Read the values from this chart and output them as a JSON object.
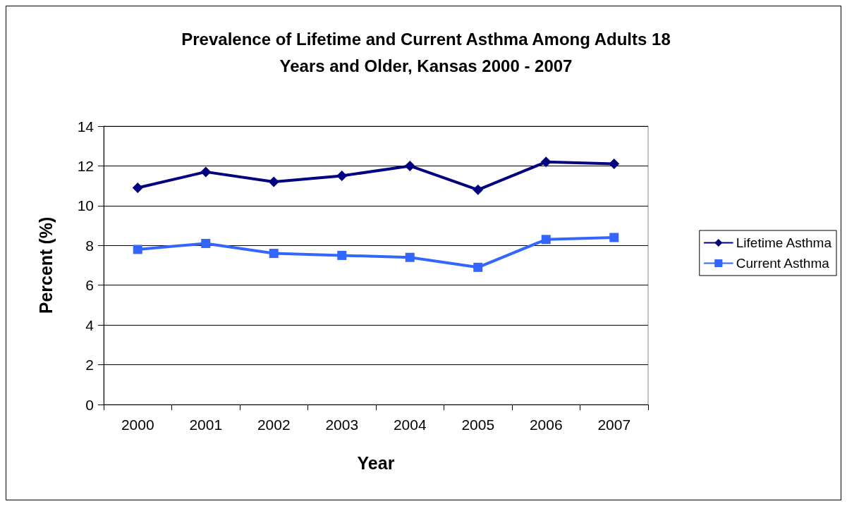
{
  "chart_data": {
    "type": "line",
    "title": "Prevalence of Lifetime and Current Asthma Among Adults 18\nYears and Older, Kansas 2000 - 2007",
    "xlabel": "Year",
    "ylabel": "Percent (%)",
    "categories": [
      "2000",
      "2001",
      "2002",
      "2003",
      "2004",
      "2005",
      "2006",
      "2007"
    ],
    "series": [
      {
        "name": "Lifetime Asthma",
        "color": "#000080",
        "marker": "diamond",
        "values": [
          10.9,
          11.7,
          11.2,
          11.5,
          12.0,
          10.8,
          12.2,
          12.1
        ]
      },
      {
        "name": "Current Asthma",
        "color": "#3366ff",
        "marker": "square",
        "values": [
          7.8,
          8.1,
          7.6,
          7.5,
          7.4,
          6.9,
          8.3,
          8.4
        ]
      }
    ],
    "ylim": [
      0,
      14
    ],
    "yticks": [
      0,
      2,
      4,
      6,
      8,
      10,
      12,
      14
    ],
    "grid": "y",
    "legend": "right",
    "line_style": "solid"
  }
}
